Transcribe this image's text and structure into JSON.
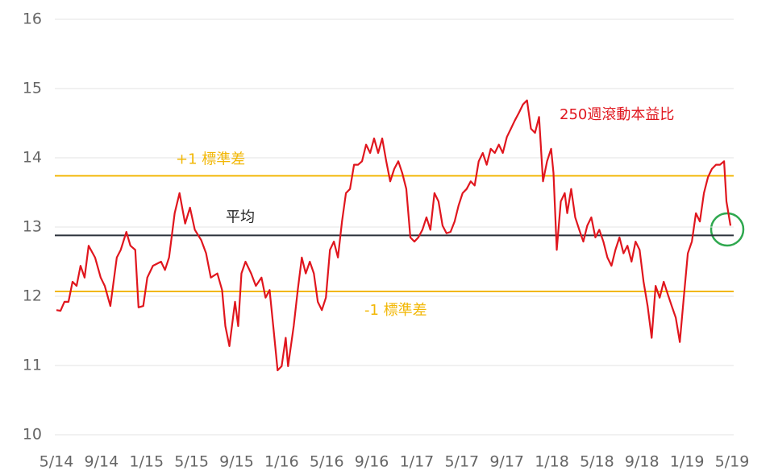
{
  "chart_data": {
    "type": "line",
    "series": [
      {
        "name": "250週滾動本益比",
        "color": "#e0161e",
        "x": [
          0,
          0.36,
          0.71,
          1.07,
          1.43,
          1.79,
          2.14,
          2.5,
          2.86,
          3.43,
          3.93,
          4.29,
          4.79,
          5.36,
          5.71,
          6.21,
          6.57,
          7,
          7.29,
          7.71,
          8.07,
          8.57,
          9.29,
          9.64,
          10,
          10.5,
          10.93,
          11.43,
          11.86,
          12.29,
          12.86,
          13.29,
          13.71,
          14.29,
          14.71,
          15,
          15.36,
          15.86,
          16.14,
          16.43,
          16.79,
          17.29,
          17.71,
          18.21,
          18.57,
          18.93,
          19.29,
          19.64,
          20,
          20.36,
          20.57,
          21.07,
          21.43,
          21.79,
          22.14,
          22.5,
          22.86,
          23.21,
          23.57,
          23.93,
          24.29,
          24.64,
          25,
          25.36,
          25.71,
          26.07,
          26.43,
          26.79,
          27.14,
          27.5,
          27.86,
          28.21,
          28.57,
          28.93,
          29.29,
          29.64,
          30,
          30.36,
          30.71,
          31.07,
          31.43,
          31.79,
          32.14,
          32.5,
          32.86,
          33.21,
          33.57,
          33.93,
          34.29,
          34.64,
          35,
          35.36,
          35.71,
          36.07,
          36.43,
          36.79,
          37.14,
          37.5,
          37.86,
          38.21,
          38.57,
          38.93,
          39.29,
          39.64,
          40,
          40.36,
          40.71,
          41.07,
          41.43,
          41.79,
          42.14,
          42.5,
          42.86,
          43.21,
          43.57,
          43.93,
          44.14,
          44.43,
          44.79,
          45.14,
          45.36,
          45.71,
          46.07,
          46.43,
          46.79,
          47.14,
          47.5,
          47.86,
          48.21,
          48.57,
          48.93,
          49.29,
          49.64,
          50,
          50.36,
          50.71,
          51.07,
          51.43,
          51.79,
          52.14,
          52.5,
          52.86,
          53.21,
          53.57,
          53.93,
          54.29,
          54.64,
          55,
          55.36,
          55.71,
          56.07,
          56.43,
          56.79,
          57.14,
          57.5,
          57.86,
          58.21,
          58.57,
          58.93,
          59.29,
          59.5,
          59.86
        ],
        "values": [
          11.8,
          11.79,
          11.92,
          11.92,
          12.21,
          12.15,
          12.44,
          12.27,
          12.73,
          12.56,
          12.27,
          12.15,
          11.86,
          12.56,
          12.67,
          12.93,
          12.73,
          12.67,
          11.84,
          11.86,
          12.27,
          12.44,
          12.5,
          12.38,
          12.56,
          13.2,
          13.49,
          13.05,
          13.28,
          12.96,
          12.81,
          12.62,
          12.27,
          12.33,
          12.09,
          11.57,
          11.28,
          11.92,
          11.57,
          12.33,
          12.5,
          12.33,
          12.15,
          12.27,
          11.98,
          12.09,
          11.51,
          10.93,
          10.99,
          11.4,
          10.99,
          11.57,
          12.09,
          12.56,
          12.33,
          12.5,
          12.33,
          11.92,
          11.8,
          11.98,
          12.67,
          12.79,
          12.56,
          13.08,
          13.49,
          13.55,
          13.9,
          13.9,
          13.95,
          14.19,
          14.07,
          14.28,
          14.07,
          14.28,
          13.95,
          13.66,
          13.84,
          13.95,
          13.78,
          13.55,
          12.85,
          12.79,
          12.85,
          12.96,
          13.14,
          12.96,
          13.49,
          13.37,
          13.02,
          12.91,
          12.93,
          13.08,
          13.31,
          13.49,
          13.55,
          13.66,
          13.6,
          13.95,
          14.07,
          13.9,
          14.13,
          14.07,
          14.19,
          14.07,
          14.3,
          14.42,
          14.54,
          14.65,
          14.77,
          14.83,
          14.42,
          14.36,
          14.59,
          13.66,
          13.95,
          14.13,
          13.78,
          12.67,
          13.37,
          13.49,
          13.2,
          13.55,
          13.14,
          12.96,
          12.79,
          13.02,
          13.14,
          12.85,
          12.96,
          12.79,
          12.56,
          12.44,
          12.67,
          12.85,
          12.62,
          12.73,
          12.5,
          12.79,
          12.67,
          12.21,
          11.86,
          11.4,
          12.15,
          11.98,
          12.21,
          12.03,
          11.86,
          11.69,
          11.34,
          11.98,
          12.62,
          12.79,
          13.2,
          13.08,
          13.49,
          13.72,
          13.84,
          13.9,
          13.9,
          13.95,
          13.37,
          13.02
        ]
      }
    ],
    "reference_lines": [
      {
        "label": "+1 標準差",
        "value": 13.74,
        "color": "#f2b705"
      },
      {
        "label": "平均",
        "value": 12.88,
        "color": "#2b323b"
      },
      {
        "label": "-1 標準差",
        "value": 12.07,
        "color": "#f2b705"
      }
    ],
    "xlim": [
      0,
      60
    ],
    "xticks": [
      {
        "value": 0,
        "label": "5/14"
      },
      {
        "value": 4,
        "label": "9/14"
      },
      {
        "value": 8,
        "label": "1/15"
      },
      {
        "value": 12,
        "label": "5/15"
      },
      {
        "value": 16,
        "label": "9/15"
      },
      {
        "value": 20,
        "label": "1/16"
      },
      {
        "value": 24,
        "label": "5/16"
      },
      {
        "value": 28,
        "label": "9/16"
      },
      {
        "value": 32,
        "label": "1/17"
      },
      {
        "value": 36,
        "label": "5/17"
      },
      {
        "value": 40,
        "label": "9/17"
      },
      {
        "value": 44,
        "label": "1/18"
      },
      {
        "value": 48,
        "label": "5/18"
      },
      {
        "value": 52,
        "label": "9/18"
      },
      {
        "value": 56,
        "label": "1/19"
      },
      {
        "value": 60,
        "label": "5/19"
      }
    ],
    "ylim": [
      10,
      16
    ],
    "yticks": [
      10,
      11,
      12,
      13,
      14,
      15,
      16
    ],
    "grid": true
  }
}
